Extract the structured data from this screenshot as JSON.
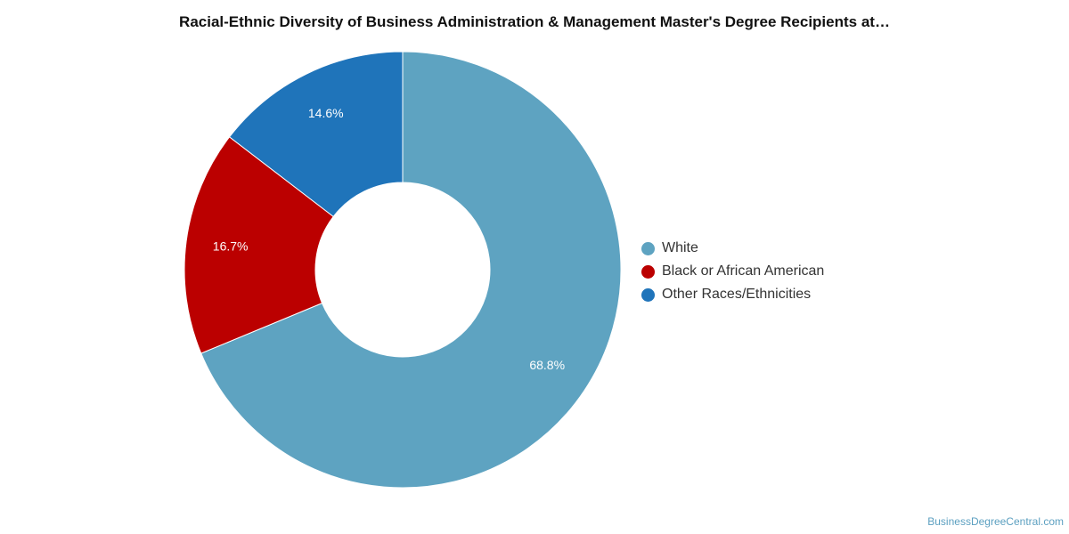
{
  "chart_data": {
    "type": "pie",
    "title": "Racial-Ethnic Diversity of Business Administration & Management Master's Degree Recipients at…",
    "donut": true,
    "legend_position": "right",
    "slices": [
      {
        "name": "White",
        "value": 68.8,
        "label": "68.8%",
        "color": "#5ea3c1"
      },
      {
        "name": "Black or African American",
        "value": 16.7,
        "label": "16.7%",
        "color": "#bb0000"
      },
      {
        "name": "Other Races/Ethnicities",
        "value": 14.6,
        "label": "14.6%",
        "color": "#1f74ba"
      }
    ]
  },
  "watermark": "BusinessDegreeCentral.com"
}
